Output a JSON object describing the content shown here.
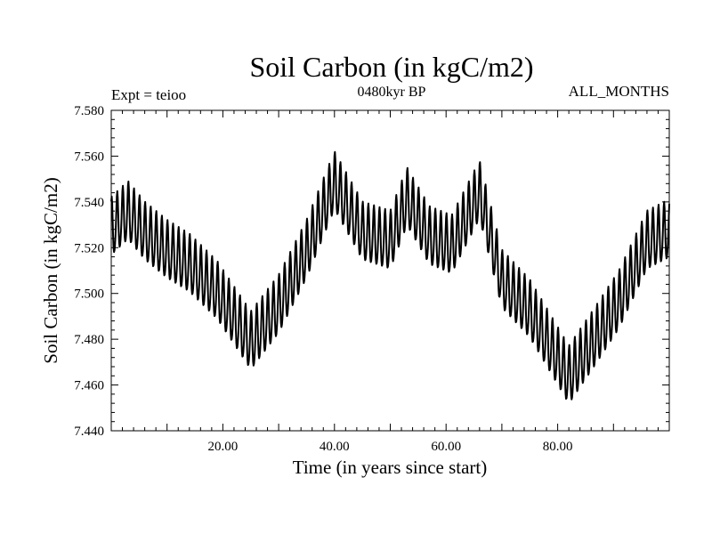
{
  "chart_data": {
    "type": "line",
    "title": "Soil Carbon (in kgC/m2)",
    "subtitle": "0480kyr BP",
    "annotations": {
      "left": "Expt = teioo",
      "right": "ALL_MONTHS"
    },
    "xlabel": "Time (in years since start)",
    "ylabel": "Soil Carbon (in kgC/m2)",
    "xlim": [
      0,
      100
    ],
    "ylim": [
      7.44,
      7.58
    ],
    "xticks": [
      20,
      40,
      60,
      80
    ],
    "xtick_labels": [
      "20.00",
      "40.00",
      "60.00",
      "80.00"
    ],
    "yticks": [
      7.44,
      7.46,
      7.48,
      7.5,
      7.52,
      7.54,
      7.56,
      7.58
    ],
    "ytick_labels": [
      "7.440",
      "7.460",
      "7.480",
      "7.500",
      "7.520",
      "7.540",
      "7.560",
      "7.580"
    ],
    "series": [
      {
        "name": "Soil Carbon",
        "color": "#000000",
        "resolution": "monthly",
        "seasonal_amplitude": 0.0125,
        "trend": {
          "x": [
            0,
            3,
            6,
            10,
            14,
            19,
            25,
            30,
            35,
            40,
            45,
            50,
            53,
            57,
            61,
            66,
            70,
            75,
            82,
            87,
            91,
            96,
            100
          ],
          "y": [
            7.528,
            7.535,
            7.526,
            7.518,
            7.512,
            7.5,
            7.478,
            7.494,
            7.518,
            7.548,
            7.526,
            7.522,
            7.541,
            7.524,
            7.52,
            7.544,
            7.505,
            7.492,
            7.463,
            7.481,
            7.496,
            7.522,
            7.527
          ]
        }
      }
    ]
  }
}
